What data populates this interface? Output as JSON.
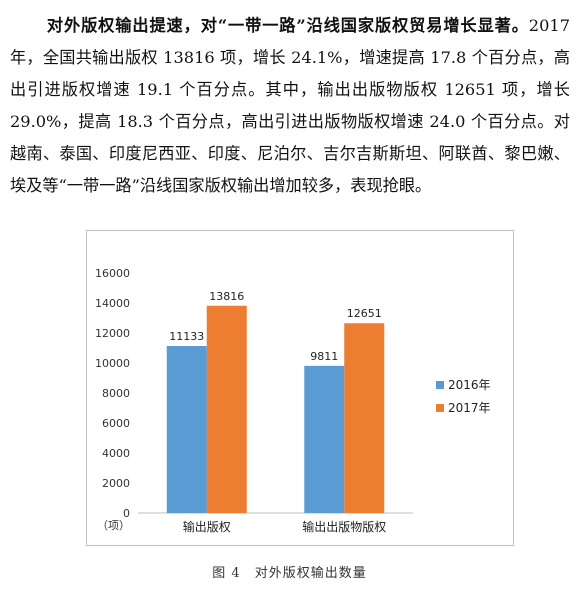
{
  "document": {
    "paragraph_lead": "对外版权输出提速，对“一带一路”沿线国家版权贸易增长显著。",
    "paragraph_body": "2017 年，全国共输出版权 13816 项，增长 24.1%，增速提高 17.8 个百分点，高出引进版权增速 19.1 个百分点。其中，输出出版物版权 12651 项，增长 29.0%，提高 18.3 个百分点，高出引进出版物版权增速 24.0 个百分点。对越南、泰国、印度尼西亚、印度、尼泊尔、吉尔吉斯斯坦、阿联酋、黎巴嫩、埃及等“一带一路”沿线国家版权输出增加较多，表现抢眼。",
    "figure_caption": "图 4　对外版权输出数量"
  },
  "chart_data": {
    "type": "bar",
    "categories": [
      "输出版权",
      "输出出版物版权"
    ],
    "series": [
      {
        "name": "2016年",
        "values": [
          11133,
          9811
        ],
        "color": "#5b9bd5"
      },
      {
        "name": "2017年",
        "values": [
          13816,
          12651
        ],
        "color": "#ed7d31"
      }
    ],
    "ylim": [
      0,
      16000
    ],
    "yticks": [
      0,
      2000,
      4000,
      6000,
      8000,
      10000,
      12000,
      14000,
      16000
    ],
    "yunit": "（项）",
    "legend_position": "right",
    "grid": false
  }
}
